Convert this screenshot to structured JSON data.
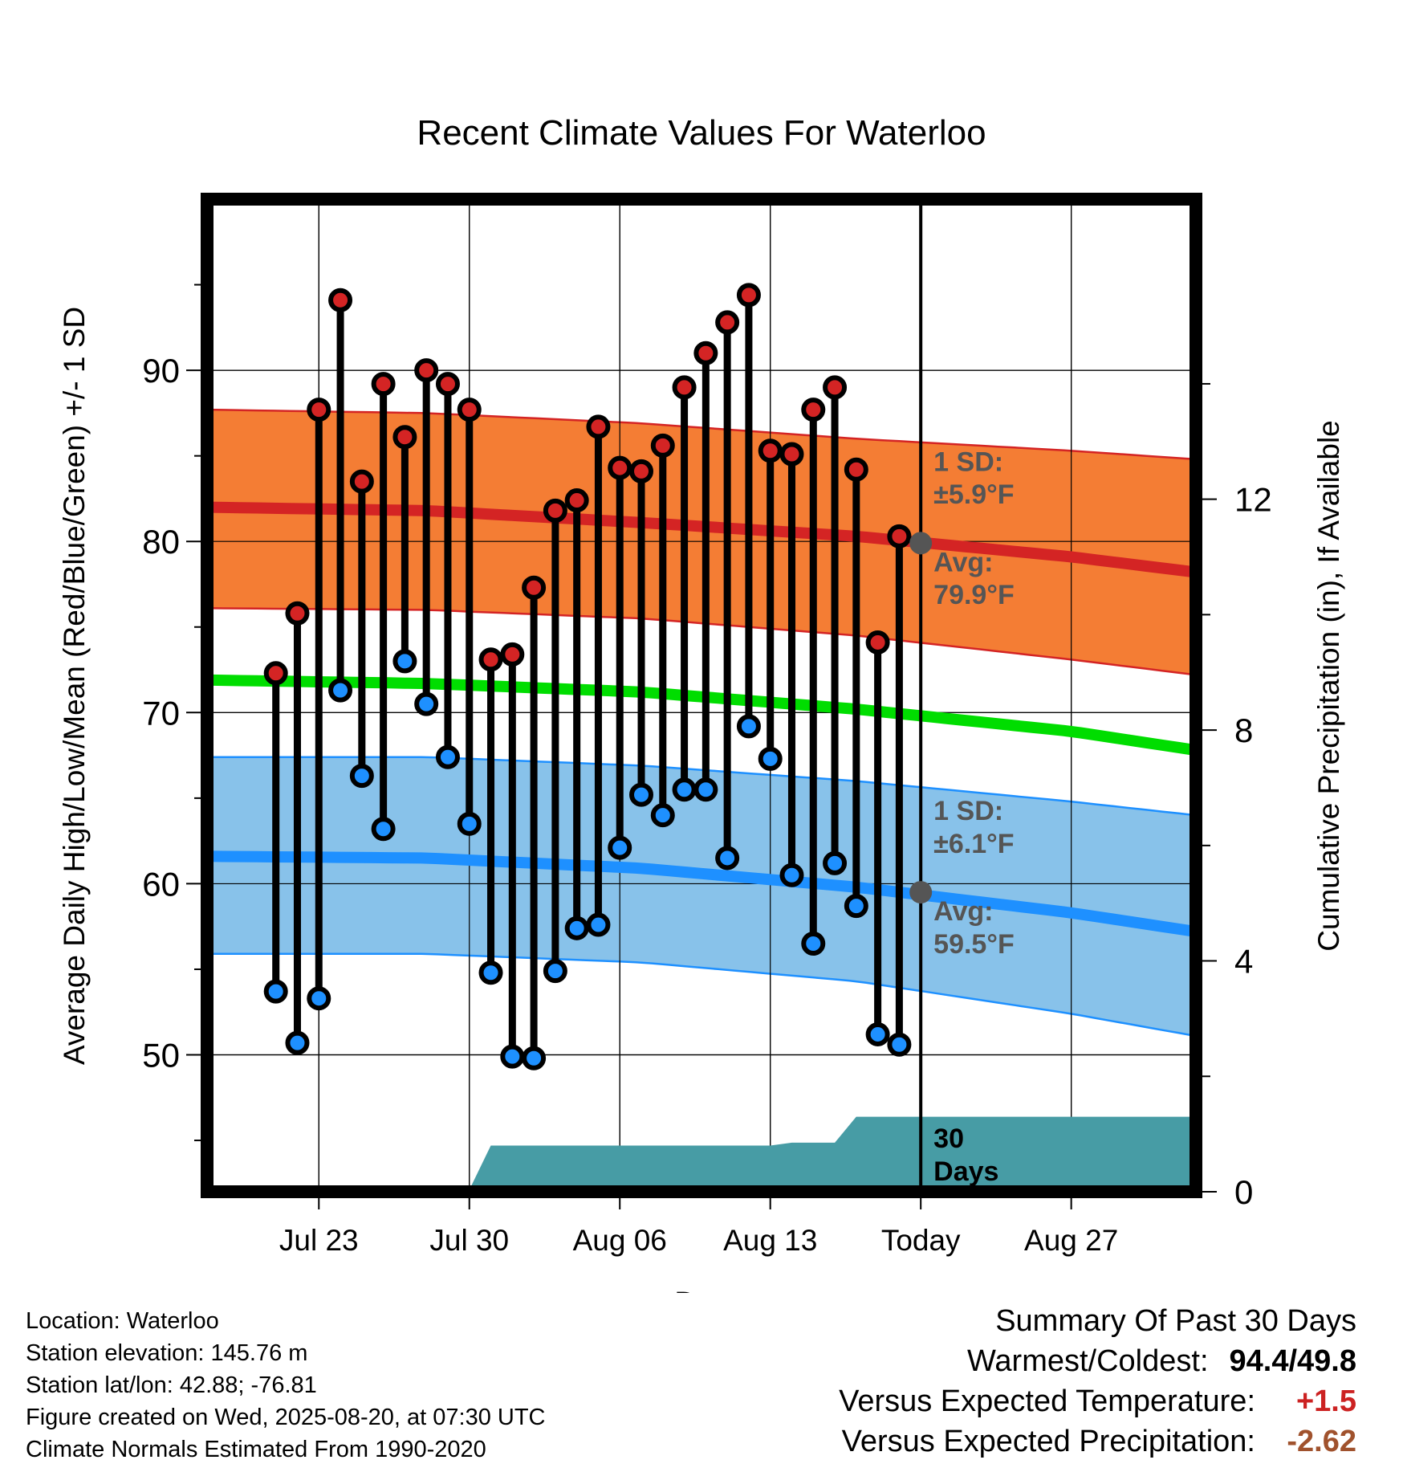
{
  "chart_data": {
    "type": "line",
    "title": "Recent Climate Values For Waterloo",
    "xlabel": "Day",
    "ylabel": "Average Daily High/Low/Mean (Red/Blue/Green) +/- 1 SD",
    "y2label": "Cumulative Precipitation (in), If Available",
    "x_tick_labels": [
      "Jul 23",
      "Jul 30",
      "Aug 06",
      "Aug 13",
      "Today",
      "Aug 27"
    ],
    "x_range_days": [
      -33.2,
      12.8
    ],
    "x_tick_days": [
      -28,
      -21,
      -14,
      -7,
      0,
      7
    ],
    "ylim": [
      42,
      100
    ],
    "y_ticks": [
      50,
      60,
      70,
      80,
      90
    ],
    "y2lim": [
      0,
      17.2
    ],
    "y2_ticks": [
      0,
      4,
      8,
      12
    ],
    "grid": true,
    "today_marker": {
      "day": 0,
      "label": "30\nDays"
    },
    "daily_observations": {
      "days": [
        -30,
        -29,
        -28,
        -27,
        -26,
        -25,
        -24,
        -23,
        -22,
        -21,
        -20,
        -19,
        -18,
        -17,
        -16,
        -15,
        -14,
        -13,
        -12,
        -11,
        -10,
        -9,
        -8,
        -7,
        -6,
        -5,
        -4,
        -3,
        -2,
        -1
      ],
      "highs": [
        72.3,
        75.8,
        87.7,
        94.1,
        83.5,
        89.2,
        86.1,
        90.0,
        89.2,
        87.7,
        73.1,
        73.4,
        77.3,
        81.8,
        82.4,
        86.7,
        84.3,
        84.1,
        85.6,
        89.0,
        91.0,
        92.8,
        94.4,
        85.3,
        85.1,
        87.7,
        89.0,
        84.2,
        74.1,
        80.3
      ],
      "lows": [
        53.7,
        50.7,
        53.3,
        71.3,
        66.3,
        63.2,
        73.0,
        70.5,
        67.4,
        63.5,
        54.8,
        49.9,
        49.8,
        54.9,
        57.4,
        57.6,
        62.1,
        65.2,
        64.0,
        65.5,
        65.5,
        61.5,
        69.2,
        67.3,
        60.5,
        56.5,
        61.2,
        58.7,
        51.2,
        50.6
      ]
    },
    "series": [
      {
        "name": "Avg High",
        "days": [
          -33.2,
          -23,
          -13,
          -3,
          7,
          12.8
        ],
        "values": [
          82.0,
          81.8,
          81.1,
          80.3,
          79.1,
          78.2
        ],
        "color": "#cc2222"
      },
      {
        "name": "Avg High + 1 SD",
        "days": [
          -33.2,
          -23,
          -13,
          -3,
          7,
          12.8
        ],
        "values": [
          87.7,
          87.5,
          86.9,
          86.0,
          85.3,
          84.8
        ],
        "color": "#cc2222"
      },
      {
        "name": "Avg High - 1 SD",
        "days": [
          -33.2,
          -23,
          -13,
          -3,
          7,
          12.8
        ],
        "values": [
          76.1,
          76.0,
          75.5,
          74.5,
          73.1,
          72.2
        ],
        "color": "#cc2222"
      },
      {
        "name": "Avg Mean",
        "days": [
          -33.2,
          -23,
          -13,
          -3,
          7,
          12.8
        ],
        "values": [
          71.9,
          71.7,
          71.2,
          70.2,
          68.9,
          67.8
        ],
        "color": "#00dd00"
      },
      {
        "name": "Avg Low",
        "days": [
          -33.2,
          -23,
          -13,
          -3,
          7,
          12.8
        ],
        "values": [
          61.6,
          61.5,
          60.9,
          59.8,
          58.3,
          57.2
        ],
        "color": "#1e90ff"
      },
      {
        "name": "Avg Low + 1 SD",
        "days": [
          -33.2,
          -23,
          -13,
          -3,
          7,
          12.8
        ],
        "values": [
          67.4,
          67.4,
          66.9,
          66.0,
          64.8,
          64.0
        ],
        "color": "#1e90ff"
      },
      {
        "name": "Avg Low - 1 SD",
        "days": [
          -33.2,
          -23,
          -13,
          -3,
          7,
          12.8
        ],
        "values": [
          55.9,
          55.9,
          55.4,
          54.3,
          52.4,
          51.1
        ],
        "color": "#1e90ff"
      },
      {
        "name": "Cumulative Precipitation",
        "days": [
          -33.2,
          -24.8,
          -24,
          -23,
          -22,
          -21,
          -20,
          -19,
          -18,
          -7,
          -6,
          -5,
          -4,
          -3,
          -2,
          -1,
          0,
          12.8
        ],
        "values": [
          0,
          0,
          0.03,
          0.03,
          0.03,
          0.03,
          0.8,
          0.8,
          0.8,
          0.8,
          0.85,
          0.85,
          0.85,
          1.3,
          1.3,
          1.3,
          1.3,
          1.3
        ],
        "color": "#479ca5"
      }
    ],
    "annotations": {
      "high_sd": "1 SD:\n±5.9°F",
      "high_avg": "Avg:\n79.9°F",
      "low_sd": "1 SD:\n±6.1°F",
      "low_avg": "Avg:\n59.5°F",
      "high_avg_today": 79.9,
      "low_avg_today": 59.5
    }
  },
  "location": {
    "line1": "Location: Waterloo",
    "line2": "Station elevation: 145.76 m",
    "line3": "Station lat/lon: 42.88; -76.81",
    "line4": "Figure created on Wed, 2025-08-20, at 07:30 UTC",
    "line5": "Climate Normals Estimated From 1990-2020"
  },
  "summary": {
    "title": "Summary Of Past 30 Days",
    "warm_cold_label": "Warmest/Coldest:",
    "warm_cold_value": "94.4/49.8",
    "temp_label": "Versus Expected Temperature:",
    "temp_value": "+1.5",
    "temp_color": "#cc2222",
    "precip_label": "Versus Expected Precipitation:",
    "precip_value": "-2.62",
    "precip_color": "#a0522d"
  }
}
